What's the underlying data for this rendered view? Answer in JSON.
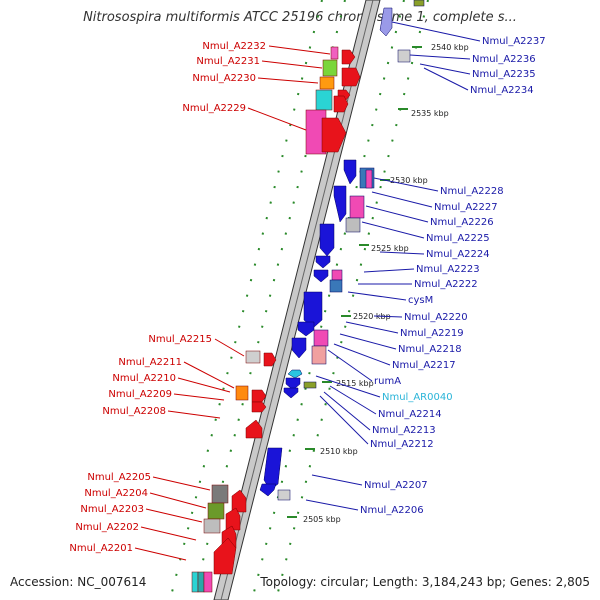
{
  "title": "Nitrosospira multiformis ATCC 25196 chromosome 1, complete s...",
  "footer": {
    "accession": "Accession: NC_007614",
    "topology": "Topology: circular; Length: 3,184,243 bp; Genes: 2,805"
  },
  "colors": {
    "forward": "#e8131b",
    "reverse": "#1a14d8",
    "rna": "#2ac4e0",
    "left_labels": "#cc0000",
    "right_labels": "#1a1aa8"
  },
  "scale_labels": [
    "2540 kbp",
    "2535 kbp",
    "2530 kbp",
    "2525 kbp",
    "2520 kbp",
    "2515 kbp",
    "2510 kbp",
    "2505 kbp"
  ],
  "left_genes": [
    "Nmul_A2232",
    "Nmul_A2231",
    "Nmul_A2230",
    "Nmul_A2229",
    "Nmul_A2215",
    "Nmul_A2211",
    "Nmul_A2210",
    "Nmul_A2209",
    "Nmul_A2208",
    "Nmul_A2205",
    "Nmul_A2204",
    "Nmul_A2203",
    "Nmul_A2202",
    "Nmul_A2201"
  ],
  "right_genes": [
    "Nmul_A2237",
    "Nmul_A2236",
    "Nmul_A2235",
    "Nmul_A2234",
    "Nmul_A2228",
    "Nmul_A2227",
    "Nmul_A2226",
    "Nmul_A2225",
    "Nmul_A2224",
    "Nmul_A2223",
    "Nmul_A2222",
    "cysM",
    "Nmul_A2220",
    "Nmul_A2219",
    "Nmul_A2218",
    "Nmul_A2217",
    "rumA",
    "Nmul_AR0040",
    "Nmul_A2214",
    "Nmul_A2213",
    "Nmul_A2212",
    "Nmul_A2207",
    "Nmul_A2206"
  ],
  "rna_genes": [
    "Nmul_AR0040"
  ]
}
